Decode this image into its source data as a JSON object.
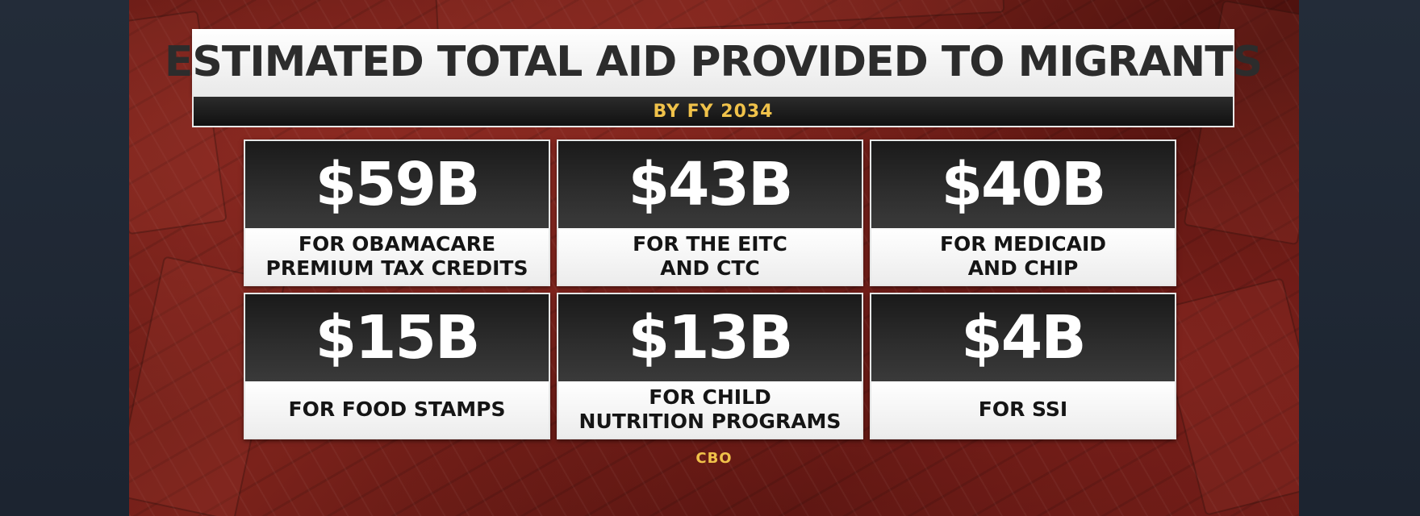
{
  "header": {
    "title": "ESTIMATED TOTAL AID PROVIDED TO MIGRANTS",
    "subtitle": "BY FY 2034"
  },
  "cards": [
    {
      "amount": "$59B",
      "line1": "FOR OBAMACARE",
      "line2": "PREMIUM TAX CREDITS"
    },
    {
      "amount": "$43B",
      "line1": "FOR THE EITC",
      "line2": "AND CTC"
    },
    {
      "amount": "$40B",
      "line1": "FOR MEDICAID",
      "line2": "AND CHIP"
    },
    {
      "amount": "$15B",
      "line1": "FOR FOOD STAMPS",
      "line2": ""
    },
    {
      "amount": "$13B",
      "line1": "FOR CHILD",
      "line2": "NUTRITION PROGRAMS"
    },
    {
      "amount": "$4B",
      "line1": "FOR SSI",
      "line2": ""
    }
  ],
  "source": "CBO",
  "colors": {
    "accent_gold": "#f0c24a",
    "background_red": "#6a1c16",
    "card_dark": "#1a1a1a"
  }
}
